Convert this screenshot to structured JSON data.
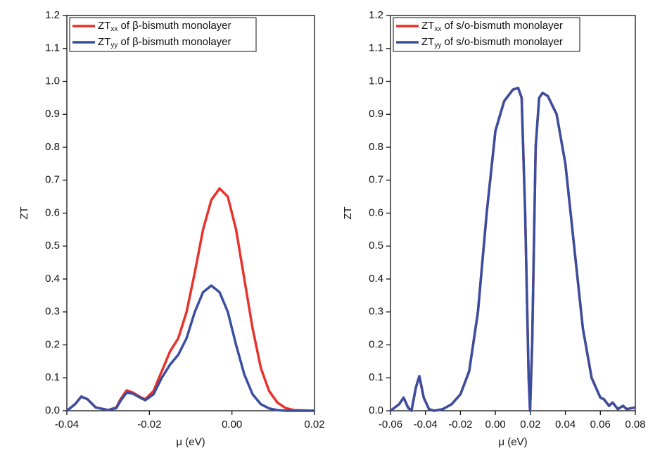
{
  "chart_data": [
    {
      "type": "line",
      "xlabel": "μ (eV)",
      "ylabel": "ZT",
      "legend": "upper left",
      "xlim": [
        -0.04,
        0.02
      ],
      "ylim": [
        0,
        1.2
      ],
      "xticks": [
        -0.04,
        -0.02,
        {
          "value": 0,
          "label": "0.00"
        },
        0.02
      ],
      "yticks": [
        {
          "value": 0,
          "label": "0.0"
        },
        0.1,
        0.2,
        0.3,
        0.4,
        0.5,
        0.6,
        0.7,
        0.8,
        0.9,
        {
          "value": 1,
          "label": "1.0"
        },
        1.1,
        1.2
      ],
      "x": [
        -0.04,
        -0.038,
        -0.0365,
        -0.035,
        -0.033,
        -0.03,
        -0.028,
        -0.027,
        -0.0255,
        -0.024,
        -0.022,
        -0.021,
        -0.019,
        -0.017,
        -0.015,
        -0.013,
        -0.011,
        -0.009,
        -0.007,
        -0.005,
        -0.003,
        -0.001,
        0.001,
        0.003,
        0.005,
        0.007,
        0.009,
        0.011,
        0.013,
        0.015,
        0.02
      ],
      "series": [
        {
          "name": "ZTxx of β-bismuth monolayer",
          "color": "#e8322c",
          "values": [
            0,
            0.02,
            0.043,
            0.035,
            0.01,
            0.002,
            0.01,
            0.035,
            0.062,
            0.055,
            0.04,
            0.035,
            0.06,
            0.12,
            0.18,
            0.22,
            0.3,
            0.42,
            0.55,
            0.64,
            0.675,
            0.65,
            0.55,
            0.4,
            0.25,
            0.13,
            0.06,
            0.025,
            0.008,
            0.002,
            0
          ]
        },
        {
          "name": "ZTyy of β-bismuth monolayer",
          "color": "#3a4ea0",
          "values": [
            0,
            0.02,
            0.043,
            0.035,
            0.01,
            0.002,
            0.008,
            0.03,
            0.055,
            0.052,
            0.038,
            0.032,
            0.05,
            0.1,
            0.14,
            0.17,
            0.22,
            0.3,
            0.36,
            0.38,
            0.36,
            0.3,
            0.2,
            0.11,
            0.05,
            0.02,
            0.007,
            0.002,
            0,
            0,
            0
          ]
        }
      ]
    },
    {
      "type": "line",
      "xlabel": "μ (eV)",
      "ylabel": "ZT",
      "legend": "upper left",
      "xlim": [
        -0.06,
        0.08
      ],
      "ylim": [
        0,
        1.2
      ],
      "xticks": [
        -0.06,
        -0.04,
        -0.02,
        {
          "value": 0,
          "label": "0.00"
        },
        0.02,
        0.04,
        0.06,
        0.08
      ],
      "yticks": [
        {
          "value": 0,
          "label": "0.0"
        },
        0.1,
        0.2,
        0.3,
        0.4,
        0.5,
        0.6,
        0.7,
        0.8,
        0.9,
        {
          "value": 1,
          "label": "1.0"
        },
        1.1,
        1.2
      ],
      "x": [
        -0.06,
        -0.055,
        -0.0525,
        -0.05,
        -0.048,
        -0.0455,
        -0.0435,
        -0.041,
        -0.038,
        -0.035,
        -0.03,
        -0.025,
        -0.02,
        -0.015,
        -0.01,
        -0.005,
        0,
        0.005,
        0.01,
        0.013,
        0.015,
        0.017,
        0.019,
        0.0198,
        0.021,
        0.023,
        0.025,
        0.027,
        0.03,
        0.035,
        0.04,
        0.045,
        0.05,
        0.055,
        0.06,
        0.062,
        0.065,
        0.067,
        0.07,
        0.073,
        0.075,
        0.08
      ],
      "series": [
        {
          "name": "ZTxx of s/o-bismuth monolayer",
          "color": "#e8322c",
          "values": [
            0,
            0.02,
            0.04,
            0.01,
            0,
            0.07,
            0.105,
            0.04,
            0.005,
            0,
            0.005,
            0.02,
            0.05,
            0.12,
            0.3,
            0.6,
            0.85,
            0.94,
            0.975,
            0.98,
            0.95,
            0.6,
            0.1,
            0,
            0.2,
            0.8,
            0.95,
            0.965,
            0.955,
            0.9,
            0.75,
            0.5,
            0.25,
            0.1,
            0.04,
            0.035,
            0.015,
            0.025,
            0.005,
            0.015,
            0.005,
            0.01
          ]
        },
        {
          "name": "ZTyy of s/o-bismuth monolayer",
          "color": "#3a4ea0",
          "values": [
            0,
            0.02,
            0.04,
            0.01,
            0,
            0.07,
            0.105,
            0.04,
            0.005,
            0,
            0.005,
            0.02,
            0.05,
            0.12,
            0.3,
            0.6,
            0.85,
            0.94,
            0.975,
            0.98,
            0.95,
            0.6,
            0.1,
            0,
            0.2,
            0.8,
            0.95,
            0.965,
            0.955,
            0.9,
            0.75,
            0.5,
            0.25,
            0.1,
            0.04,
            0.035,
            0.015,
            0.025,
            0.005,
            0.015,
            0.005,
            0.01
          ]
        }
      ]
    }
  ]
}
